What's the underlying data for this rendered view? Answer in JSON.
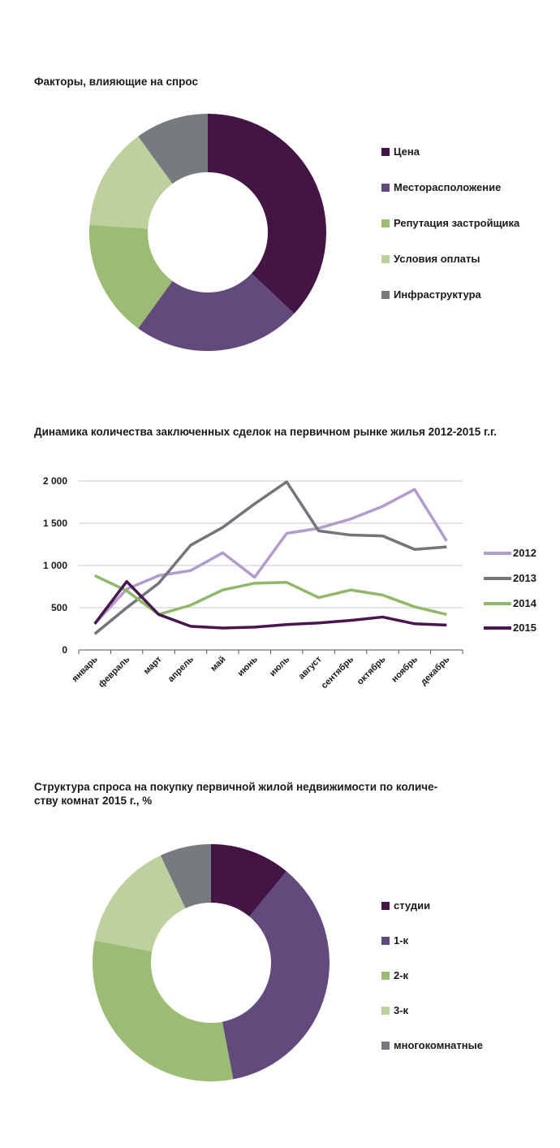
{
  "chart_data": [
    {
      "type": "pie",
      "title": "Факторы, влияющие на спрос",
      "categories": [
        "Цена",
        "Месторасположение",
        "Репутация застройщика",
        "Условия оплаты",
        "Инфраструктура"
      ],
      "values": [
        37,
        23,
        16,
        14,
        10
      ],
      "colors": [
        "#421545",
        "#624b7c",
        "#9cbb74",
        "#bed09d",
        "#767b80"
      ],
      "legend": "right"
    },
    {
      "type": "line",
      "title": "Динамика количества заключенных сделок на первичном рынке жилья 2012-2015 г.г.",
      "categories": [
        "январь",
        "февраль",
        "март",
        "апрель",
        "май",
        "июнь",
        "июль",
        "август",
        "сентябрь",
        "октябрь",
        "ноябрь",
        "декабрь"
      ],
      "ylim": [
        0,
        2000
      ],
      "ytick_labels": [
        "0",
        "500",
        "1 000",
        "1 500",
        "2 000"
      ],
      "ytick_values": [
        0,
        500,
        1000,
        1500,
        2000
      ],
      "grid": true,
      "legend": "right",
      "series": [
        {
          "name": "2012",
          "color": "#b39bcb",
          "values": [
            310,
            720,
            880,
            940,
            1150,
            860,
            1380,
            1440,
            1550,
            1700,
            1900,
            1290
          ]
        },
        {
          "name": "2013",
          "color": "#727579",
          "values": [
            190,
            500,
            790,
            1240,
            1450,
            1730,
            1990,
            1410,
            1360,
            1350,
            1190,
            1220
          ]
        },
        {
          "name": "2014",
          "color": "#8fb868",
          "values": [
            880,
            700,
            420,
            530,
            710,
            790,
            800,
            620,
            710,
            650,
            510,
            420
          ]
        },
        {
          "name": "2015",
          "color": "#4a1650",
          "values": [
            310,
            810,
            420,
            280,
            260,
            270,
            300,
            320,
            350,
            390,
            310,
            295
          ]
        }
      ]
    },
    {
      "type": "pie",
      "title": "Структура спроса на покупку первичной жилой недвижимости по количе-ству комнат 2015 г., %",
      "title_lines": [
        "Структура спроса на покупку первичной жилой недвижимости по количе-",
        "ству комнат 2015 г., %"
      ],
      "categories": [
        "студии",
        "1-к",
        "2-к",
        "3-к",
        "многокомнатные"
      ],
      "values": [
        11,
        36,
        31,
        15,
        7
      ],
      "colors": [
        "#421545",
        "#624b7c",
        "#9cbb74",
        "#bed09d",
        "#767b80"
      ],
      "legend": "right"
    }
  ]
}
